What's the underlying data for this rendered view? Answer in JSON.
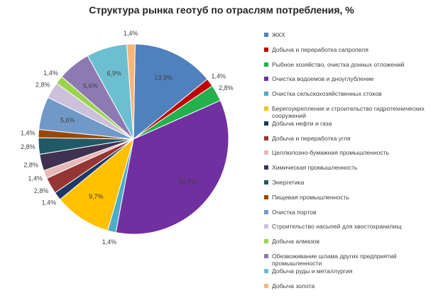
{
  "chart_data": {
    "type": "pie",
    "title": "Структура рынка геотуб по отраслям потребления, %",
    "legend_position": "right",
    "categories": [
      "ЖКХ",
      "Добыча и переработка сапропеля",
      "Рыбное хозяйство, очистка донных отложений",
      "Очистка водоемов и дноуглубление",
      "Очистка сельскохозяйственных стоков",
      "Берегоукрепление и строительство гидротехнических сооружений",
      "Добыча нефти и газа",
      "Добыча и переработка угля",
      "Целлюлозно-бумажная промышленность",
      "Химическая промышленность",
      "Энергетика",
      "Пищевая промышленность",
      "Очистка портов",
      "Строительство насыпей для хвостохранилищ",
      "Добыча алмазов",
      "Обезвоживание шлама других предприятий промышленности",
      "Добыча руды и металлургия",
      "Добыча золота"
    ],
    "values": [
      13.9,
      1.4,
      2.8,
      34.7,
      1.4,
      9.7,
      1.4,
      2.8,
      1.4,
      2.8,
      2.8,
      1.4,
      5.6,
      2.8,
      1.4,
      5.6,
      6.9,
      1.4
    ],
    "data_labels": [
      "13,9%",
      "1,4%",
      "2,8%",
      "34,7%",
      "1,4%",
      "9,7%",
      "1,4%",
      "2,8%",
      "1,4%",
      "2,8%",
      "2,8%",
      "1,4%",
      "5,6%",
      "2,8%",
      "1,4%",
      "5,6%",
      "6,9%",
      "1,4%"
    ],
    "colors": [
      "#4F81BD",
      "#C00000",
      "#22B14C",
      "#7030A0",
      "#4BACC6",
      "#FFC000",
      "#1F3864",
      "#943634",
      "#E6B9B8",
      "#3F3151",
      "#215967",
      "#984806",
      "#7199C8",
      "#CCC1DA",
      "#9BD44E",
      "#8E7AB2",
      "#6CBFD1",
      "#F9B47B"
    ]
  }
}
